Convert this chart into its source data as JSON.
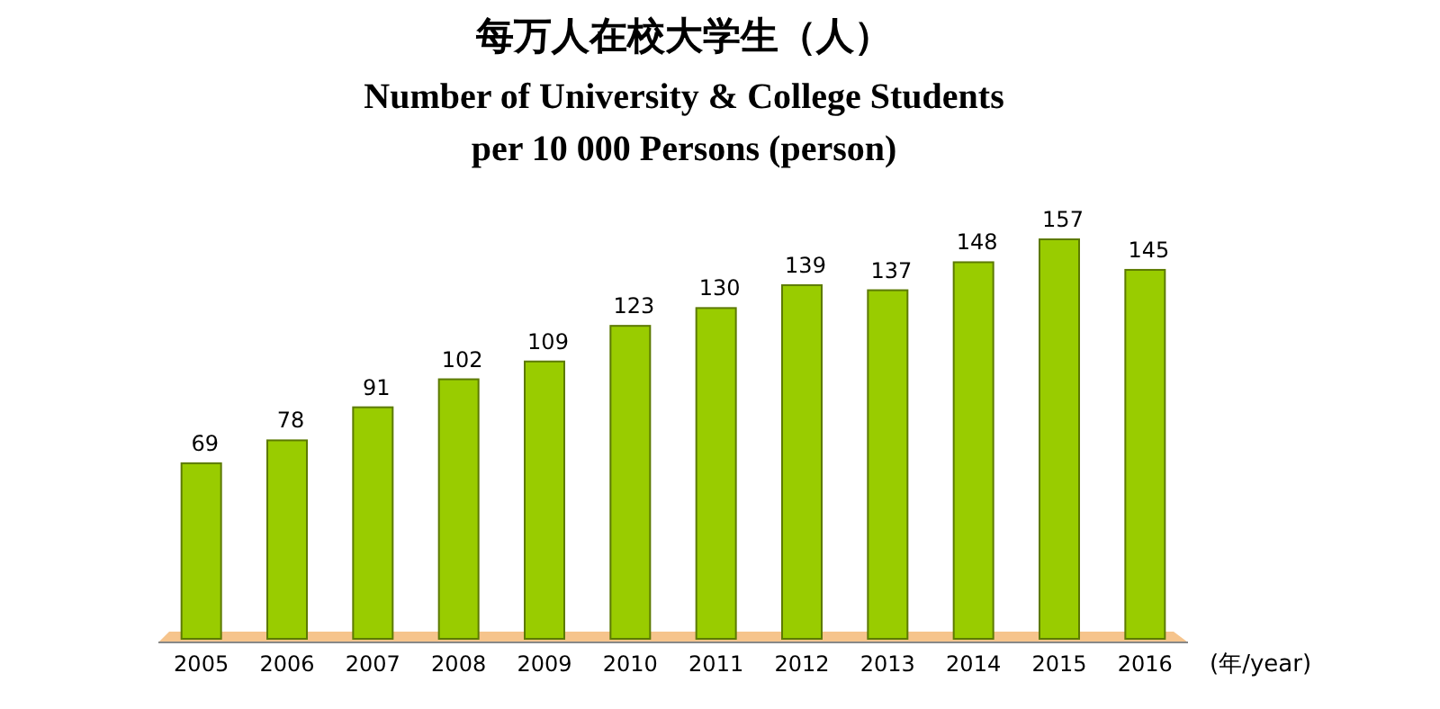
{
  "chart_data": {
    "type": "bar",
    "title": "每万人在校大学生（人）",
    "subtitle": "Number of University & College Students per 10 000 Persons (person)",
    "xlabel": "(年/year)",
    "categories": [
      "2005",
      "2006",
      "2007",
      "2008",
      "2009",
      "2010",
      "2011",
      "2012",
      "2013",
      "2014",
      "2015",
      "2016"
    ],
    "values": [
      69,
      78,
      91,
      102,
      109,
      123,
      130,
      139,
      137,
      148,
      157,
      145
    ],
    "color": "#99cc00",
    "data_labels": true
  }
}
